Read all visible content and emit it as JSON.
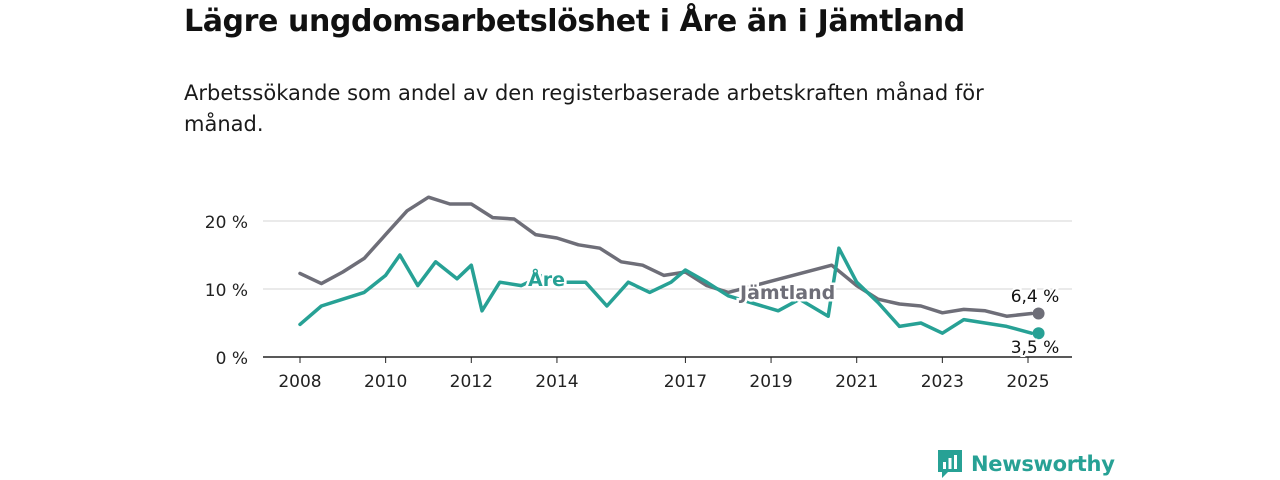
{
  "header": {
    "title": "Lägre ungdomsarbetslöshet i Åre än i Jämtland",
    "subtitle": "Arbetssökande som andel av den registerbaserade arbetskraften månad för månad."
  },
  "brand": {
    "name": "Newsworthy",
    "icon": "bar-chart-speech-icon",
    "color": "#27a195"
  },
  "chart_data": {
    "type": "line",
    "title": "Lägre ungdomsarbetslöshet i Åre än i Jämtland",
    "subtitle": "Arbetssökande som andel av den registerbaserade arbetskraften månad för månad.",
    "xlabel": "",
    "ylabel": "",
    "x_ticks": [
      "2008",
      "2010",
      "2012",
      "2014",
      "2017",
      "2019",
      "2021",
      "2023",
      "2025"
    ],
    "y_ticks": [
      "0 %",
      "10 %",
      "20 %"
    ],
    "ylim": [
      0,
      22
    ],
    "grid": "horizontal",
    "legend": "inline labels",
    "series": [
      {
        "name": "Jämtland",
        "color": "#6e6e78",
        "end_label": "6,4 %",
        "points": [
          [
            "2008-01",
            12.3
          ],
          [
            "2008-07",
            10.8
          ],
          [
            "2009-01",
            12.5
          ],
          [
            "2009-07",
            14.5
          ],
          [
            "2010-01",
            18.0
          ],
          [
            "2010-07",
            21.5
          ],
          [
            "2011-01",
            23.5
          ],
          [
            "2011-07",
            22.5
          ],
          [
            "2012-01",
            22.5
          ],
          [
            "2012-07",
            20.5
          ],
          [
            "2013-01",
            20.3
          ],
          [
            "2013-07",
            18.0
          ],
          [
            "2014-01",
            17.5
          ],
          [
            "2014-07",
            16.5
          ],
          [
            "2015-01",
            16.0
          ],
          [
            "2015-07",
            14.0
          ],
          [
            "2016-01",
            13.5
          ],
          [
            "2016-07",
            12.0
          ],
          [
            "2017-01",
            12.5
          ],
          [
            "2017-07",
            10.5
          ],
          [
            "2018-01",
            9.5
          ],
          [
            "2020-06",
            13.5
          ],
          [
            "2021-01",
            10.5
          ],
          [
            "2021-07",
            8.5
          ],
          [
            "2022-01",
            7.8
          ],
          [
            "2022-07",
            7.5
          ],
          [
            "2023-01",
            6.5
          ],
          [
            "2023-07",
            7.0
          ],
          [
            "2024-01",
            6.8
          ],
          [
            "2024-07",
            6.0
          ],
          [
            "2025-02",
            6.4
          ]
        ]
      },
      {
        "name": "Åre",
        "color": "#27a195",
        "end_label": "3,5 %",
        "points": [
          [
            "2008-01",
            4.8
          ],
          [
            "2008-07",
            7.5
          ],
          [
            "2009-01",
            8.5
          ],
          [
            "2009-07",
            9.5
          ],
          [
            "2010-01",
            12.0
          ],
          [
            "2010-05",
            15.0
          ],
          [
            "2010-10",
            10.5
          ],
          [
            "2011-03",
            14.0
          ],
          [
            "2011-09",
            11.5
          ],
          [
            "2012-01",
            13.5
          ],
          [
            "2012-04",
            6.8
          ],
          [
            "2012-09",
            11.0
          ],
          [
            "2013-03",
            10.5
          ],
          [
            "2013-09",
            12.0
          ],
          [
            "2014-01",
            11.0
          ],
          [
            "2014-09",
            11.0
          ],
          [
            "2015-03",
            7.5
          ],
          [
            "2015-09",
            11.0
          ],
          [
            "2016-03",
            9.5
          ],
          [
            "2016-09",
            11.0
          ],
          [
            "2017-01",
            12.8
          ],
          [
            "2017-07",
            11.0
          ],
          [
            "2018-01",
            9.0
          ],
          [
            "2019-03",
            6.8
          ],
          [
            "2019-09",
            8.5
          ],
          [
            "2020-05",
            6.0
          ],
          [
            "2020-08",
            16.0
          ],
          [
            "2021-01",
            11.0
          ],
          [
            "2021-07",
            8.0
          ],
          [
            "2022-01",
            4.5
          ],
          [
            "2022-07",
            5.0
          ],
          [
            "2023-01",
            3.5
          ],
          [
            "2023-07",
            5.5
          ],
          [
            "2024-01",
            5.0
          ],
          [
            "2024-07",
            4.5
          ],
          [
            "2025-02",
            3.5
          ]
        ]
      }
    ]
  }
}
